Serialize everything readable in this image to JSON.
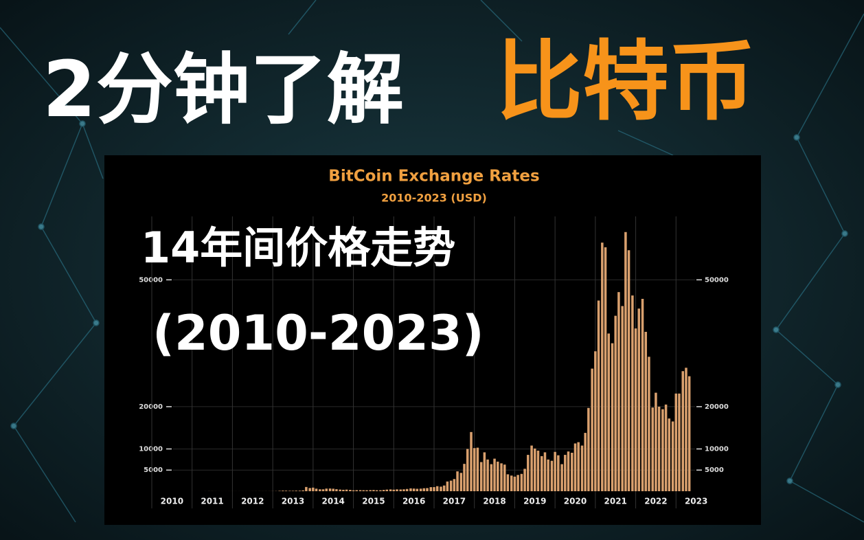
{
  "header": {
    "title_white": "2分钟了解",
    "title_orange": "比特币"
  },
  "overlay": {
    "line1": "14年间价格走势",
    "line2": "(2010-2023)"
  },
  "chart_data": {
    "type": "bar",
    "title": "BitCoin Exchange Rates",
    "subtitle": "2010-2023 (USD)",
    "color": "#d9a06e",
    "x": [
      2010.0,
      2010.08,
      2010.17,
      2010.25,
      2010.33,
      2010.42,
      2010.5,
      2010.58,
      2010.67,
      2010.75,
      2010.83,
      2010.92,
      2011.0,
      2011.08,
      2011.17,
      2011.25,
      2011.33,
      2011.42,
      2011.5,
      2011.58,
      2011.67,
      2011.75,
      2011.83,
      2011.92,
      2012.0,
      2012.08,
      2012.17,
      2012.25,
      2012.33,
      2012.42,
      2012.5,
      2012.58,
      2012.67,
      2012.75,
      2012.83,
      2012.92,
      2013.0,
      2013.08,
      2013.17,
      2013.25,
      2013.33,
      2013.42,
      2013.5,
      2013.58,
      2013.67,
      2013.75,
      2013.83,
      2013.92,
      2014.0,
      2014.08,
      2014.17,
      2014.25,
      2014.33,
      2014.42,
      2014.5,
      2014.58,
      2014.67,
      2014.75,
      2014.83,
      2014.92,
      2015.0,
      2015.08,
      2015.17,
      2015.25,
      2015.33,
      2015.42,
      2015.5,
      2015.58,
      2015.67,
      2015.75,
      2015.83,
      2015.92,
      2016.0,
      2016.08,
      2016.17,
      2016.25,
      2016.33,
      2016.42,
      2016.5,
      2016.58,
      2016.67,
      2016.75,
      2016.83,
      2016.92,
      2017.0,
      2017.08,
      2017.17,
      2017.25,
      2017.33,
      2017.42,
      2017.5,
      2017.58,
      2017.67,
      2017.75,
      2017.83,
      2017.92,
      2018.0,
      2018.08,
      2018.17,
      2018.25,
      2018.33,
      2018.42,
      2018.5,
      2018.58,
      2018.67,
      2018.75,
      2018.83,
      2018.92,
      2019.0,
      2019.08,
      2019.17,
      2019.25,
      2019.33,
      2019.42,
      2019.5,
      2019.58,
      2019.67,
      2019.75,
      2019.83,
      2019.92,
      2020.0,
      2020.08,
      2020.17,
      2020.25,
      2020.33,
      2020.42,
      2020.5,
      2020.58,
      2020.67,
      2020.75,
      2020.83,
      2020.92,
      2021.0,
      2021.08,
      2021.17,
      2021.25,
      2021.33,
      2021.42,
      2021.5,
      2021.58,
      2021.67,
      2021.75,
      2021.83,
      2021.92,
      2022.0,
      2022.08,
      2022.17,
      2022.25,
      2022.33,
      2022.42,
      2022.5,
      2022.58,
      2022.67,
      2022.75,
      2022.83,
      2022.92,
      2023.0,
      2023.08,
      2023.17,
      2023.25,
      2023.33
    ],
    "values": [
      0.06,
      0.06,
      0.06,
      0.06,
      0.06,
      0.07,
      0.07,
      0.06,
      0.06,
      0.2,
      0.3,
      0.3,
      0.5,
      0.9,
      0.8,
      3,
      8,
      17,
      14,
      8,
      5,
      3,
      3,
      4,
      6,
      5,
      5,
      5,
      5,
      6,
      9,
      10,
      12,
      11,
      12,
      13,
      20,
      33,
      90,
      140,
      130,
      100,
      100,
      130,
      130,
      200,
      1000,
      750,
      850,
      600,
      450,
      450,
      620,
      640,
      590,
      480,
      390,
      340,
      380,
      320,
      220,
      250,
      250,
      235,
      230,
      260,
      285,
      230,
      235,
      310,
      380,
      430,
      370,
      435,
      415,
      450,
      530,
      670,
      625,
      575,
      610,
      700,
      740,
      960,
      970,
      1190,
      1080,
      1350,
      2300,
      2500,
      2880,
      4700,
      4340,
      6470,
      10000,
      14000,
      10200,
      10300,
      6900,
      9200,
      7500,
      6400,
      7700,
      7000,
      6600,
      6300,
      4000,
      3700,
      3450,
      3850,
      4100,
      5300,
      8600,
      10800,
      10100,
      9600,
      8300,
      9200,
      7500,
      7200,
      9300,
      8500,
      6400,
      8600,
      9400,
      9100,
      11300,
      11600,
      10800,
      13800,
      19700,
      29000,
      33100,
      45100,
      58800,
      57700,
      37300,
      35000,
      41500,
      47100,
      43800,
      61300,
      57000,
      46300,
      38500,
      43200,
      45500,
      37700,
      31800,
      19800,
      23300,
      20000,
      19400,
      20500,
      17200,
      16500,
      23100,
      23100,
      28400,
      29200,
      27200
    ],
    "xlim": [
      2010,
      2024
    ],
    "xticks": [
      2010,
      2011,
      2012,
      2013,
      2014,
      2015,
      2016,
      2017,
      2018,
      2019,
      2020,
      2021,
      2022,
      2023
    ],
    "ylim": [
      0,
      65000
    ],
    "yticks": [
      5000,
      10000,
      20000,
      50000
    ],
    "grid": true
  }
}
